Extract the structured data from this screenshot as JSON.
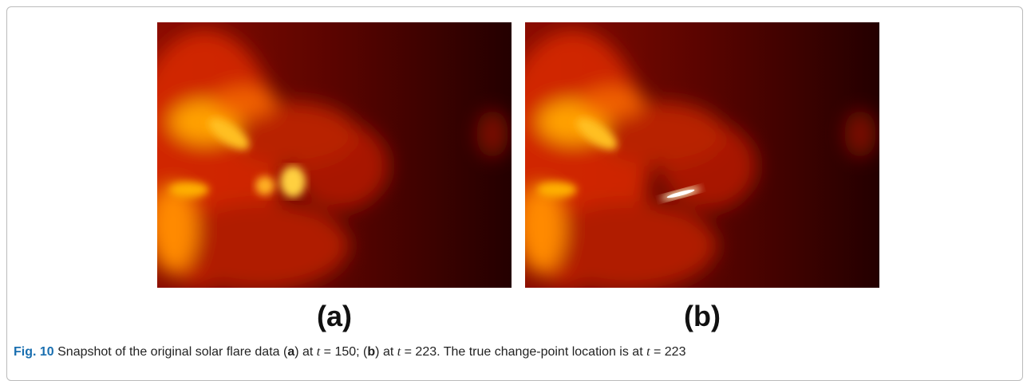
{
  "figure": {
    "panels": [
      {
        "label": "(a)"
      },
      {
        "label": "(b)"
      }
    ],
    "caption": [
      {
        "text": "Fig. 10",
        "style": "label"
      },
      {
        "text": " Snapshot of the original solar flare data (",
        "style": "plain"
      },
      {
        "text": "a",
        "style": "bold"
      },
      {
        "text": ") at ",
        "style": "plain"
      },
      {
        "text": "t",
        "style": "italic"
      },
      {
        "text": " = 150; (",
        "style": "plain"
      },
      {
        "text": "b",
        "style": "bold"
      },
      {
        "text": ") at ",
        "style": "plain"
      },
      {
        "text": "t",
        "style": "italic"
      },
      {
        "text": " = 223. The true change-point location is at ",
        "style": "plain"
      },
      {
        "text": "t",
        "style": "italic"
      },
      {
        "text": " = 223",
        "style": "plain"
      }
    ]
  }
}
